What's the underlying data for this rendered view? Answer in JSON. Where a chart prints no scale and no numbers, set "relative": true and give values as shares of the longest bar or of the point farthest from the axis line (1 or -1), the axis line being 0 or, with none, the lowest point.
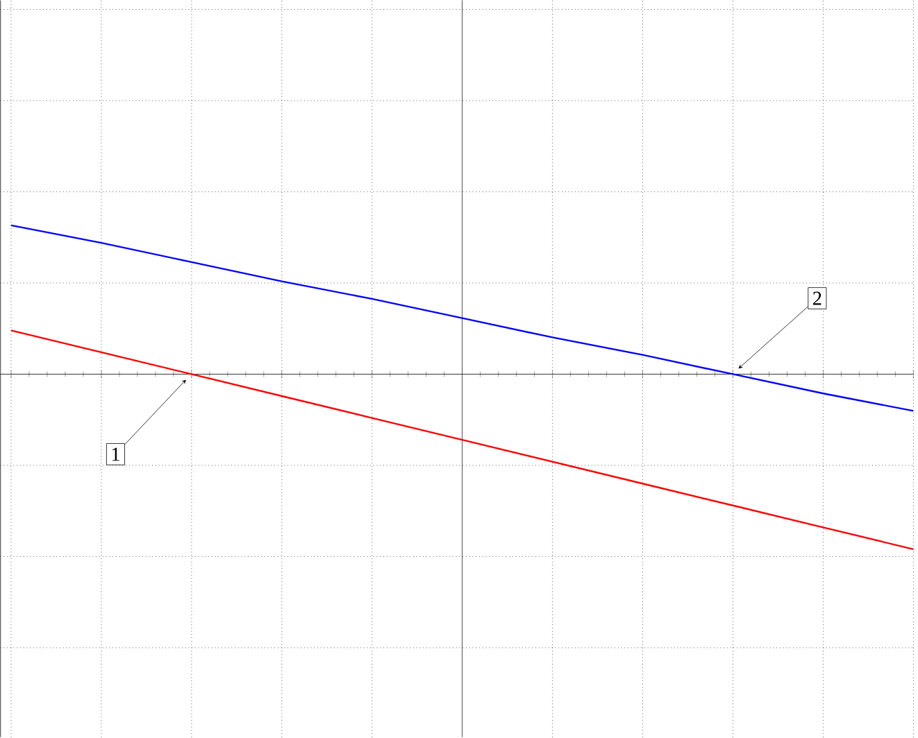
{
  "chart_data": {
    "type": "line",
    "relative": true,
    "categories": [
      null,
      null,
      null,
      null,
      null,
      null,
      null,
      null,
      null,
      null,
      null
    ],
    "series": [
      {
        "color": "#ff0000",
        "values": [
          0.25,
          0.125,
          0,
          -0.125,
          -0.25,
          -0.375,
          -0.5,
          -0.625,
          -0.75,
          -0.875,
          -1
        ]
      },
      {
        "color": "#0000ff",
        "values": [
          0.85,
          0.75,
          0.64,
          0.53,
          0.43,
          0.32,
          0.21,
          0.11,
          0,
          -0.11,
          -0.21
        ]
      }
    ],
    "annotations": [
      "1",
      "2"
    ],
    "grid": true,
    "marker": "none",
    "line_style": "solid"
  }
}
